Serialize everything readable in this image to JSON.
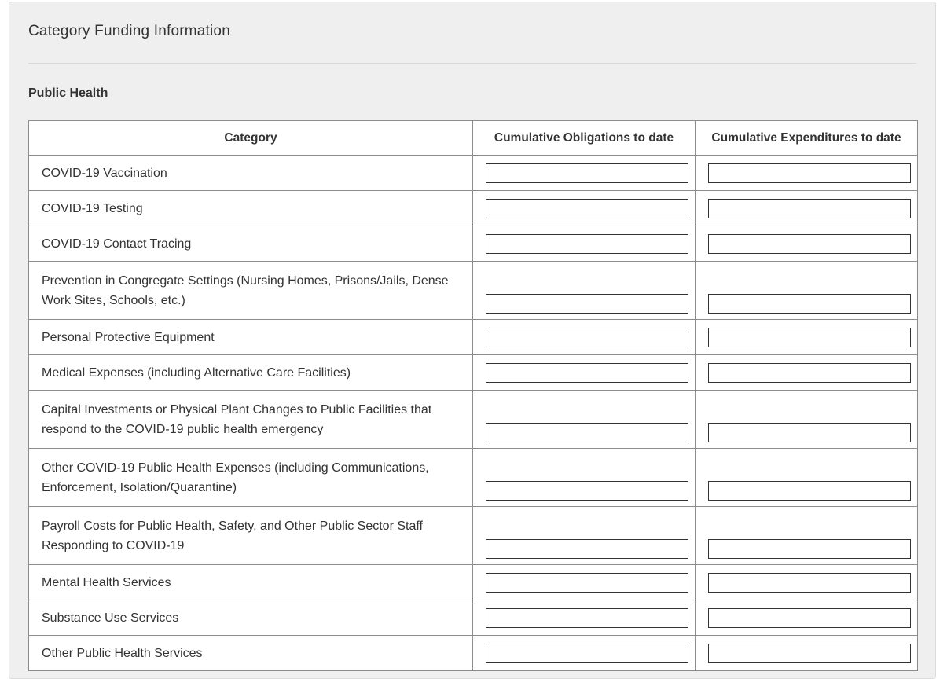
{
  "panel": {
    "title": "Category Funding Information",
    "section_title": "Public Health"
  },
  "table": {
    "headers": [
      "Category",
      "Cumulative Obligations to date",
      "Cumulative Expenditures to date"
    ],
    "rows": [
      {
        "category": "COVID-19 Vaccination",
        "obligations": "",
        "expenditures": "",
        "lines": 1
      },
      {
        "category": "COVID-19 Testing",
        "obligations": "",
        "expenditures": "",
        "lines": 1
      },
      {
        "category": "COVID-19 Contact Tracing",
        "obligations": "",
        "expenditures": "",
        "lines": 1
      },
      {
        "category": "Prevention in Congregate Settings (Nursing Homes, Prisons/Jails, Dense Work Sites, Schools, etc.)",
        "obligations": "",
        "expenditures": "",
        "lines": 2
      },
      {
        "category": "Personal Protective Equipment",
        "obligations": "",
        "expenditures": "",
        "lines": 1
      },
      {
        "category": "Medical Expenses (including Alternative Care Facilities)",
        "obligations": "",
        "expenditures": "",
        "lines": 1
      },
      {
        "category": "Capital Investments or Physical Plant Changes to Public Facilities that respond to the COVID-19 public health emergency",
        "obligations": "",
        "expenditures": "",
        "lines": 2
      },
      {
        "category": "Other COVID-19 Public Health Expenses (including Communications, Enforcement, Isolation/Quarantine)",
        "obligations": "",
        "expenditures": "",
        "lines": 2
      },
      {
        "category": "Payroll Costs for Public Health, Safety, and Other Public Sector Staff Responding to COVID-19",
        "obligations": "",
        "expenditures": "",
        "lines": 2
      },
      {
        "category": "Mental Health Services",
        "obligations": "",
        "expenditures": "",
        "lines": 1
      },
      {
        "category": "Substance Use Services",
        "obligations": "",
        "expenditures": "",
        "lines": 1
      },
      {
        "category": "Other Public Health Services",
        "obligations": "",
        "expenditures": "",
        "lines": 1
      }
    ]
  }
}
